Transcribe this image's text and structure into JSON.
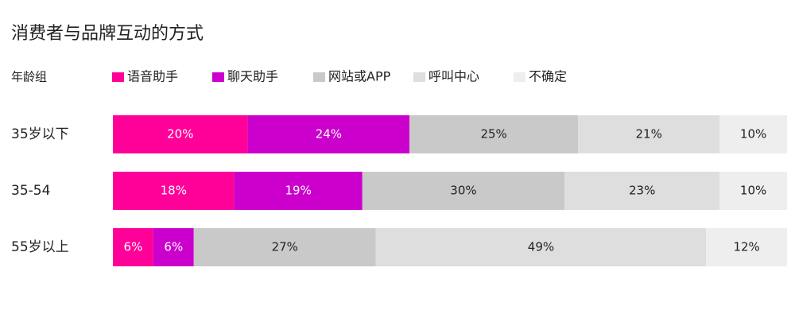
{
  "chart_data": {
    "type": "bar",
    "stacked": true,
    "orientation": "horizontal",
    "normalized": "percent",
    "title": "消费者与品牌互动的方式",
    "category_axis_label": "年龄组",
    "categories": [
      "35岁以下",
      "35-54",
      "55岁以上"
    ],
    "series": [
      {
        "name": "语音助手",
        "color": "#ff0099",
        "values": [
          20,
          18,
          6
        ],
        "labels": [
          "20%",
          "18%",
          "6%"
        ]
      },
      {
        "name": "聊天助手",
        "color": "#cc00cc",
        "values": [
          24,
          19,
          6
        ],
        "labels": [
          "24%",
          "19%",
          "6%"
        ]
      },
      {
        "name": "网站或APP",
        "color": "#c9c9c9",
        "values": [
          25,
          30,
          27
        ],
        "labels": [
          "25%",
          "30%",
          "27%"
        ]
      },
      {
        "name": "呼叫中心",
        "color": "#dedede",
        "values": [
          21,
          23,
          49
        ],
        "labels": [
          "21%",
          "23%",
          "49%"
        ]
      },
      {
        "name": "不确定",
        "color": "#eeeeee",
        "values": [
          10,
          10,
          12
        ],
        "labels": [
          "10%",
          "10%",
          "12%"
        ]
      }
    ],
    "legend_position": "top",
    "grid": false
  }
}
